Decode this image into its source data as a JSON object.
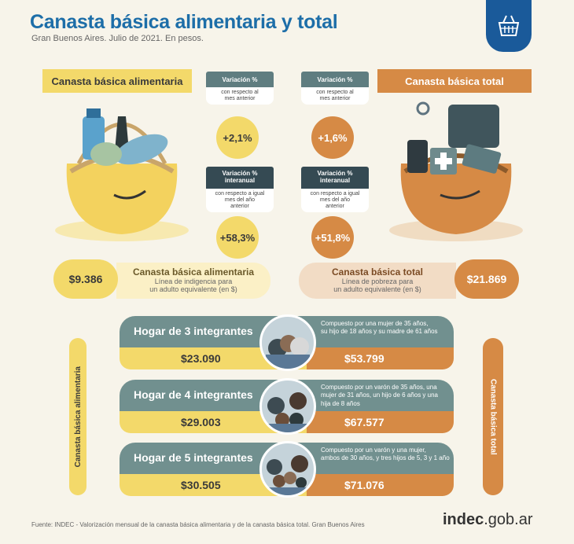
{
  "header": {
    "title": "Canasta básica alimentaria y total",
    "subtitle": "Gran Buenos Aires. Julio de 2021. En pesos."
  },
  "logo_icon": "shopping-basket-icon",
  "cba": {
    "label": "Canasta básica alimentaria",
    "var_monthly": "+2,1%",
    "var_yearly": "+58,3%",
    "value": "$9.386",
    "box_title": "Canasta básica alimentaria",
    "box_desc_1": "Línea de indigencia para",
    "box_desc_2": "un adulto equivalente (en $)",
    "side_label": "Canasta básica alimentaria",
    "color": "#f3d96a"
  },
  "cbt": {
    "label": "Canasta básica total",
    "var_monthly": "+1,6%",
    "var_yearly": "+51,8%",
    "value": "$21.869",
    "box_title": "Canasta básica total",
    "box_desc_1": "Línea de pobreza para",
    "box_desc_2": "un adulto equivalente (en $)",
    "side_label": "Canasta básica total",
    "color": "#d68a45"
  },
  "variation": {
    "monthly_title": "Variación %",
    "monthly_sub_1": "con respecto al",
    "monthly_sub_2": "mes anterior",
    "yearly_title_1": "Variación %",
    "yearly_title_2": "interanual",
    "yearly_sub_1": "con respecto a igual",
    "yearly_sub_2": "mes del año",
    "yearly_sub_3": "anterior"
  },
  "households": [
    {
      "title": "Hogar de 3 integrantes",
      "desc_1": "Compuesto por una mujer de 35 años,",
      "desc_2": "su hijo de 18 años y su madre de 61 años",
      "desc_3": "",
      "cba": "$23.090",
      "cbt": "$53.799"
    },
    {
      "title": "Hogar de 4 integrantes",
      "desc_1": "Compuesto por un varón de 35 años, una",
      "desc_2": "mujer de 31 años, un hijo de 6 años y una",
      "desc_3": "hija de 8 años",
      "cba": "$29.003",
      "cbt": "$67.577"
    },
    {
      "title": "Hogar de 5 integrantes",
      "desc_1": "Compuesto por un varón y una mujer,",
      "desc_2": "ambos de 30 años, y tres hijos de 5, 3 y 1 año",
      "desc_3": "",
      "cba": "$30.505",
      "cbt": "$71.076"
    }
  ],
  "footer": {
    "source": "Fuente: INDEC - Valorización mensual de la canasta básica alimentaria y de la canasta básica total. Gran Buenos Aires",
    "brand_bold": "indec",
    "brand_rest": ".gob.ar"
  }
}
